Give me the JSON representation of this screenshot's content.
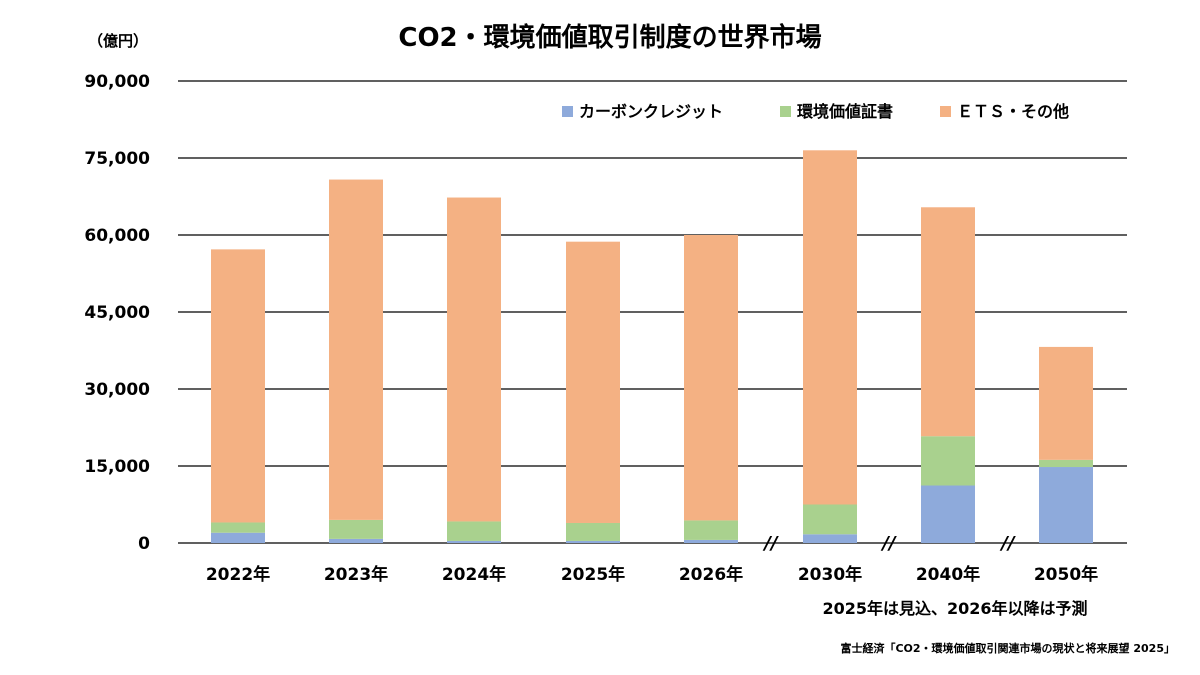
{
  "chart_data": {
    "type": "bar",
    "stacked": true,
    "title": "CO2・環境価値取引制度の世界市場",
    "unit_label": "（億円）",
    "categories": [
      "2022年",
      "2023年",
      "2024年",
      "2025年",
      "2026年",
      "2030年",
      "2040年",
      "2050年"
    ],
    "series": [
      {
        "name": "カーボンクレジット",
        "color": "#8eaadb",
        "values": [
          2000,
          800,
          400,
          400,
          600,
          1700,
          11200,
          14800
        ]
      },
      {
        "name": "環境価値証書",
        "color": "#a9d18e",
        "values": [
          2000,
          3700,
          3800,
          3500,
          3800,
          5800,
          9600,
          1400
        ]
      },
      {
        "name": "ＥＴＳ・その他",
        "color": "#f4b183",
        "values": [
          53200,
          66300,
          63100,
          54800,
          55600,
          69000,
          44600,
          22000
        ]
      }
    ],
    "ylim": [
      0,
      90000
    ],
    "yticks": [
      0,
      15000,
      30000,
      45000,
      60000,
      75000,
      90000
    ],
    "ytick_labels": [
      "0",
      "15,000",
      "30,000",
      "45,000",
      "60,000",
      "75,000",
      "90,000"
    ],
    "axis_breaks": [
      "//",
      "//",
      "//"
    ],
    "grid": true,
    "legend_position": "top-right",
    "note": "2025年は見込、2026年以降は予測",
    "source": "富士経済「CO2・環境価値取引関連市場の現状と将来展望 2025」"
  }
}
